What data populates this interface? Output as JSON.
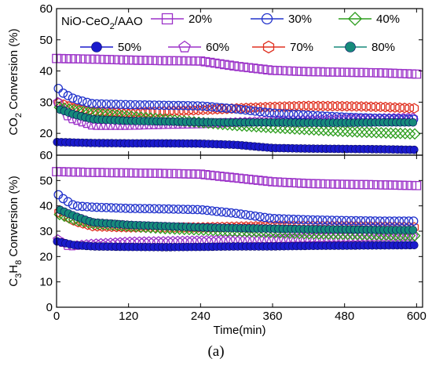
{
  "figure": {
    "panel_label": "(a)"
  },
  "chart_data": {
    "type": "scatter",
    "inset_label": {
      "base": "NiO-CeO",
      "sub": "2",
      "rest": "/AAO"
    },
    "xlabel": "Time(min)",
    "xlim": [
      0,
      610
    ],
    "xticks": [
      0,
      120,
      240,
      360,
      480,
      600
    ],
    "legend_position": "top",
    "series_styles": [
      {
        "name": "20%",
        "color": "#9b30c8",
        "marker": "square",
        "filled": false
      },
      {
        "name": "30%",
        "color": "#2233cc",
        "marker": "circle",
        "filled": false
      },
      {
        "name": "40%",
        "color": "#2e9e1f",
        "marker": "diamond",
        "filled": false
      },
      {
        "name": "50%",
        "color": "#1a1acc",
        "marker": "circle",
        "filled": true
      },
      {
        "name": "60%",
        "color": "#9b30c8",
        "marker": "pentagon",
        "filled": false
      },
      {
        "name": "70%",
        "color": "#e03020",
        "marker": "hexagon",
        "filled": false
      },
      {
        "name": "80%",
        "color": "#168a7a",
        "marker": "circle",
        "filled": true
      }
    ],
    "panels": [
      {
        "ylabel": {
          "pre": "CO",
          "sub": "2",
          "post": " Conversion (%)"
        },
        "ylim": [
          13,
          60
        ],
        "yticks": [
          20,
          30,
          40,
          50,
          60
        ],
        "series": [
          {
            "name": "20%",
            "x": [
              0,
              60,
              120,
              180,
              240,
              300,
              360,
              420,
              480,
              540,
              600
            ],
            "values": [
              44,
              43.8,
              43.5,
              43.3,
              43.2,
              41.5,
              40.2,
              39.8,
              39.6,
              39.4,
              39
            ]
          },
          {
            "name": "30%",
            "x": [
              0,
              10,
              30,
              60,
              120,
              180,
              240,
              300,
              360,
              420,
              480,
              540,
              600
            ],
            "values": [
              35,
              33,
              31,
              29.5,
              29.2,
              29,
              28.8,
              27.8,
              26.5,
              25.8,
              25.2,
              24.8,
              24.5
            ]
          },
          {
            "name": "40%",
            "x": [
              0,
              30,
              60,
              120,
              180,
              240,
              300,
              360,
              420,
              480,
              540,
              600
            ],
            "values": [
              28.5,
              27.5,
              26.5,
              25.5,
              24.5,
              23.5,
              22.5,
              21.8,
              21.2,
              20.6,
              20.2,
              19.8
            ]
          },
          {
            "name": "50%",
            "x": [
              0,
              60,
              120,
              180,
              240,
              300,
              360,
              420,
              480,
              540,
              600
            ],
            "values": [
              17.2,
              16.9,
              16.8,
              16.8,
              16.7,
              16.3,
              15.3,
              15.1,
              15,
              14.9,
              14.7
            ]
          },
          {
            "name": "60%",
            "x": [
              0,
              20,
              60,
              120,
              180,
              240,
              300,
              360,
              420,
              480,
              540,
              600
            ],
            "values": [
              30.5,
              25,
              22.5,
              22.5,
              22.8,
              23,
              23.5,
              24,
              24.3,
              24.5,
              24.8,
              25
            ]
          },
          {
            "name": "70%",
            "x": [
              0,
              30,
              60,
              120,
              180,
              240,
              300,
              360,
              420,
              480,
              540,
              600
            ],
            "values": [
              30,
              28,
              27,
              26.5,
              27,
              27.5,
              28,
              28.5,
              28.8,
              28.7,
              28.5,
              28
            ]
          },
          {
            "name": "80%",
            "x": [
              0,
              30,
              60,
              120,
              180,
              240,
              300,
              360,
              420,
              480,
              540,
              600
            ],
            "values": [
              28,
              26,
              24.5,
              24,
              23.8,
              23.6,
              23.5,
              23.5,
              23.4,
              23.4,
              23.5,
              23.5
            ]
          }
        ]
      },
      {
        "ylabel": {
          "pre": "C",
          "sub": "3",
          "mid": "H",
          "sub2": "8",
          "post": " Conversion (%)"
        },
        "ylim": [
          0,
          60
        ],
        "yticks": [
          0,
          10,
          20,
          30,
          40,
          50,
          60
        ],
        "series": [
          {
            "name": "20%",
            "x": [
              0,
              60,
              120,
              180,
              240,
              300,
              360,
              420,
              480,
              540,
              600
            ],
            "values": [
              53.5,
              53.2,
              53,
              52.8,
              52.5,
              51,
              49.5,
              48.8,
              48.5,
              48.3,
              48
            ]
          },
          {
            "name": "30%",
            "x": [
              0,
              10,
              30,
              60,
              120,
              180,
              240,
              300,
              360,
              420,
              480,
              540,
              600
            ],
            "values": [
              45,
              43,
              40,
              39.5,
              39,
              38.8,
              38.5,
              37,
              35,
              34.5,
              34.2,
              34,
              34
            ]
          },
          {
            "name": "40%",
            "x": [
              0,
              30,
              60,
              120,
              180,
              240,
              300,
              360,
              420,
              480,
              540,
              600
            ],
            "values": [
              37,
              34.5,
              33,
              32,
              31,
              30.5,
              30,
              29.5,
              29,
              28.8,
              28.5,
              28.2
            ]
          },
          {
            "name": "50%",
            "x": [
              0,
              30,
              60,
              120,
              180,
              240,
              300,
              360,
              420,
              480,
              540,
              600
            ],
            "values": [
              26,
              24.5,
              24,
              23.8,
              23.7,
              23.8,
              24,
              24,
              24.2,
              24.3,
              24.4,
              24.5
            ]
          },
          {
            "name": "60%",
            "x": [
              0,
              20,
              60,
              120,
              180,
              240,
              300,
              360,
              420,
              480,
              540,
              600
            ],
            "values": [
              27,
              24,
              25,
              25.8,
              26,
              26.3,
              26.7,
              27,
              27.3,
              27.5,
              27.8,
              28
            ]
          },
          {
            "name": "70%",
            "x": [
              0,
              30,
              60,
              120,
              180,
              240,
              300,
              360,
              420,
              480,
              540,
              600
            ],
            "values": [
              38,
              34,
              32,
              31.5,
              31.5,
              31.5,
              31.8,
              32,
              32,
              32,
              31.8,
              31.5
            ]
          },
          {
            "name": "80%",
            "x": [
              0,
              30,
              60,
              120,
              180,
              240,
              300,
              360,
              420,
              480,
              540,
              600
            ],
            "values": [
              39,
              36,
              33.5,
              32.5,
              32,
              31.5,
              31.2,
              31,
              30.8,
              30.7,
              30.5,
              30.5
            ]
          }
        ]
      }
    ]
  }
}
